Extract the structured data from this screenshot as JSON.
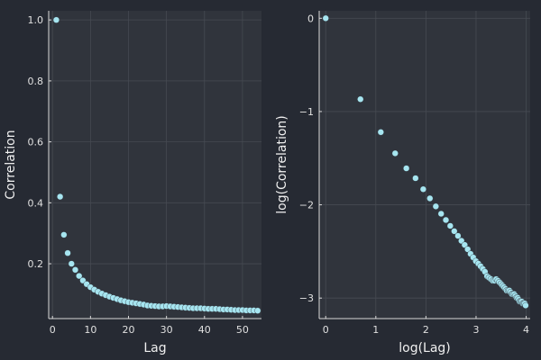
{
  "chart_data": [
    {
      "type": "scatter",
      "xlabel": "Lag",
      "ylabel": "Correlation",
      "xlim": [
        -1,
        55
      ],
      "ylim": [
        0.02,
        1.03
      ],
      "xticks": [
        0,
        10,
        20,
        30,
        40,
        50
      ],
      "xtick_labels": [
        "0",
        "10",
        "20",
        "30",
        "40",
        "50"
      ],
      "yticks": [
        0.2,
        0.4,
        0.6,
        0.8,
        1.0
      ],
      "ytick_labels": [
        "0.2",
        "0.4",
        "0.6",
        "0.8",
        "1.0"
      ],
      "grid": true,
      "color": "#a6e5f0",
      "x": [
        1,
        2,
        3,
        4,
        5,
        6,
        7,
        8,
        9,
        10,
        11,
        12,
        13,
        14,
        15,
        16,
        17,
        18,
        19,
        20,
        21,
        22,
        23,
        24,
        25,
        26,
        27,
        28,
        29,
        30,
        31,
        32,
        33,
        34,
        35,
        36,
        37,
        38,
        39,
        40,
        41,
        42,
        43,
        44,
        45,
        46,
        47,
        48,
        49,
        50,
        51,
        52,
        53,
        54
      ],
      "y": [
        1.0,
        0.42,
        0.295,
        0.235,
        0.2,
        0.18,
        0.16,
        0.145,
        0.133,
        0.123,
        0.115,
        0.108,
        0.102,
        0.097,
        0.092,
        0.088,
        0.084,
        0.08,
        0.077,
        0.074,
        0.072,
        0.07,
        0.068,
        0.066,
        0.063,
        0.062,
        0.061,
        0.06,
        0.06,
        0.061,
        0.06,
        0.059,
        0.058,
        0.057,
        0.056,
        0.055,
        0.054,
        0.054,
        0.054,
        0.053,
        0.052,
        0.052,
        0.052,
        0.051,
        0.05,
        0.05,
        0.049,
        0.048,
        0.048,
        0.048,
        0.047,
        0.047,
        0.047,
        0.046
      ]
    },
    {
      "type": "scatter",
      "xlabel": "log(Lag)",
      "ylabel": "log(Correlation)",
      "xlim": [
        -0.13,
        4.08
      ],
      "ylim": [
        -3.22,
        0.08
      ],
      "xticks": [
        0,
        1,
        2,
        3,
        4
      ],
      "xtick_labels": [
        "0",
        "1",
        "2",
        "3",
        "4"
      ],
      "yticks": [
        -3,
        -2,
        -1,
        0
      ],
      "ytick_labels": [
        "−3",
        "−2",
        "−1",
        "0"
      ],
      "grid": true,
      "color": "#a6e5f0",
      "x": [
        0,
        0.693,
        1.099,
        1.386,
        1.609,
        1.792,
        1.946,
        2.079,
        2.197,
        2.303,
        2.398,
        2.485,
        2.565,
        2.639,
        2.708,
        2.773,
        2.833,
        2.89,
        2.944,
        2.996,
        3.045,
        3.091,
        3.135,
        3.178,
        3.219,
        3.258,
        3.296,
        3.332,
        3.367,
        3.401,
        3.434,
        3.466,
        3.497,
        3.526,
        3.555,
        3.584,
        3.611,
        3.638,
        3.664,
        3.689,
        3.714,
        3.738,
        3.761,
        3.784,
        3.807,
        3.829,
        3.85,
        3.871,
        3.892,
        3.912,
        3.932,
        3.951,
        3.97,
        3.989
      ],
      "y": [
        0,
        -0.868,
        -1.221,
        -1.448,
        -1.609,
        -1.715,
        -1.833,
        -1.931,
        -2.017,
        -2.096,
        -2.163,
        -2.226,
        -2.283,
        -2.333,
        -2.386,
        -2.43,
        -2.477,
        -2.526,
        -2.565,
        -2.604,
        -2.631,
        -2.659,
        -2.688,
        -2.718,
        -2.765,
        -2.781,
        -2.797,
        -2.813,
        -2.813,
        -2.797,
        -2.813,
        -2.83,
        -2.847,
        -2.865,
        -2.882,
        -2.9,
        -2.919,
        -2.919,
        -2.919,
        -2.937,
        -2.957,
        -2.957,
        -2.957,
        -2.976,
        -2.996,
        -2.996,
        -3.016,
        -3.037,
        -3.037,
        -3.037,
        -3.058,
        -3.058,
        -3.058,
        -3.079
      ]
    }
  ]
}
